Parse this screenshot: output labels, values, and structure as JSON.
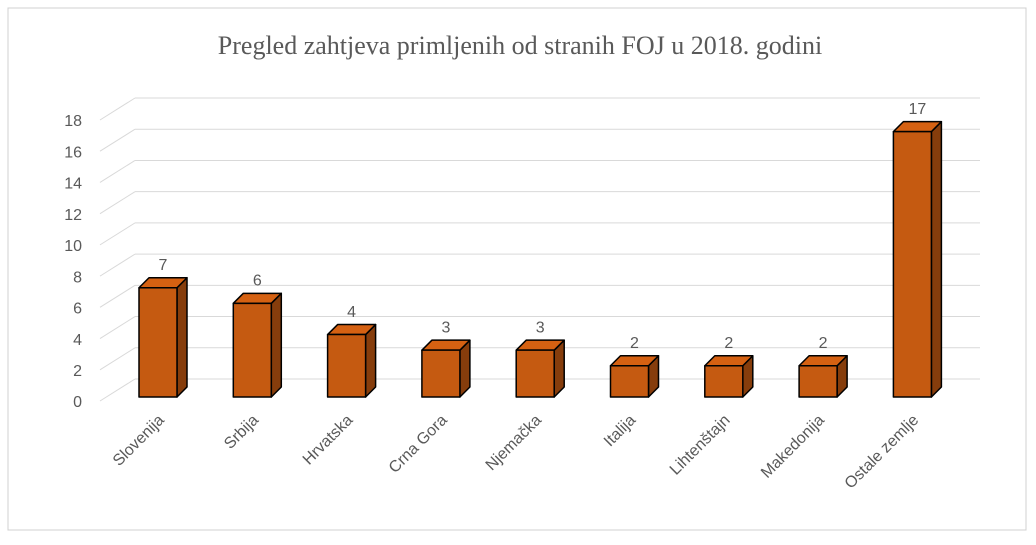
{
  "chart_data": {
    "type": "bar",
    "title": "Pregled zahtjeva primljenih od stranih FOJ u 2018. godini",
    "categories": [
      "Slovenija",
      "Srbija",
      "Hrvatska",
      "Crna Gora",
      "Njemačka",
      "Italija",
      "Lihtenštajn",
      "Makedonija",
      "Ostale zemlje"
    ],
    "values": [
      7,
      6,
      4,
      3,
      3,
      2,
      2,
      2,
      17
    ],
    "color": "#c55a11",
    "ylim": [
      0,
      18
    ],
    "yticks": [
      0,
      2,
      4,
      6,
      8,
      10,
      12,
      14,
      16,
      18
    ],
    "grid": true
  }
}
